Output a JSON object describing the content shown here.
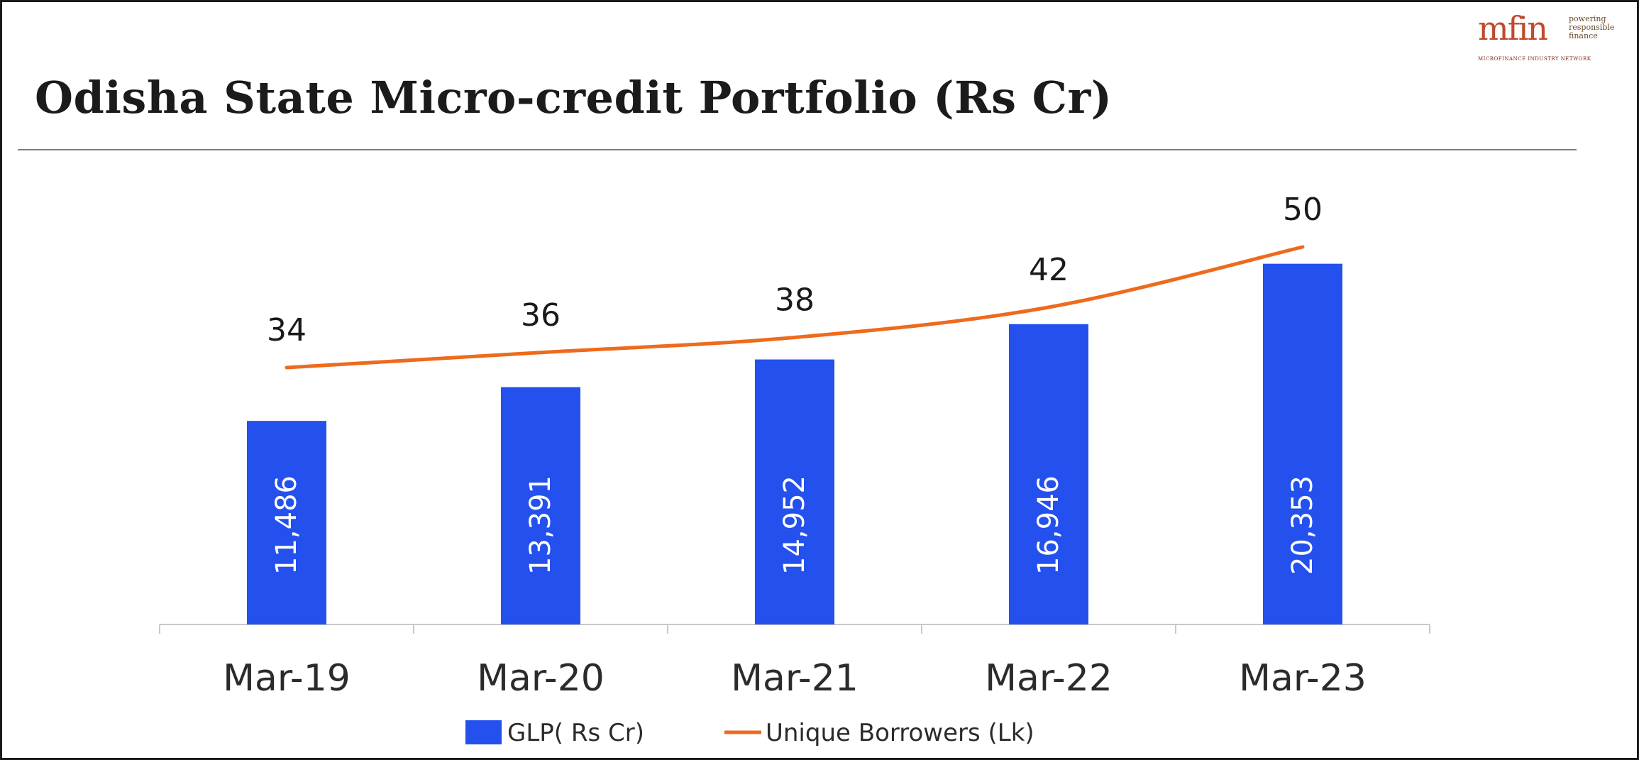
{
  "title": "Odisha State Micro-credit Portfolio (Rs Cr)",
  "logo": {
    "mark": "mfin",
    "tagline": [
      "powering",
      "responsible",
      "finance"
    ],
    "network": "Microfinance Industry Network"
  },
  "colors": {
    "bar": "#2450ee",
    "line": "#ee6a1c",
    "axis": "#c9c9c9",
    "rule": "#7c7c86"
  },
  "chart_data": {
    "type": "bar",
    "categories": [
      "Mar-19",
      "Mar-20",
      "Mar-21",
      "Mar-22",
      "Mar-23"
    ],
    "series": [
      {
        "name": "GLP( Rs Cr)",
        "type": "bar",
        "values": [
          11486,
          13391,
          14952,
          16946,
          20353
        ],
        "labels": [
          "11,486",
          "13,391",
          "14,952",
          "16,946",
          "20,353"
        ]
      },
      {
        "name": "Unique Borrowers (Lk)",
        "type": "line",
        "values": [
          34,
          36,
          38,
          42,
          50
        ],
        "labels": [
          "34",
          "36",
          "38",
          "42",
          "50"
        ]
      }
    ],
    "legend_position": "bottom-center",
    "grid": false
  }
}
